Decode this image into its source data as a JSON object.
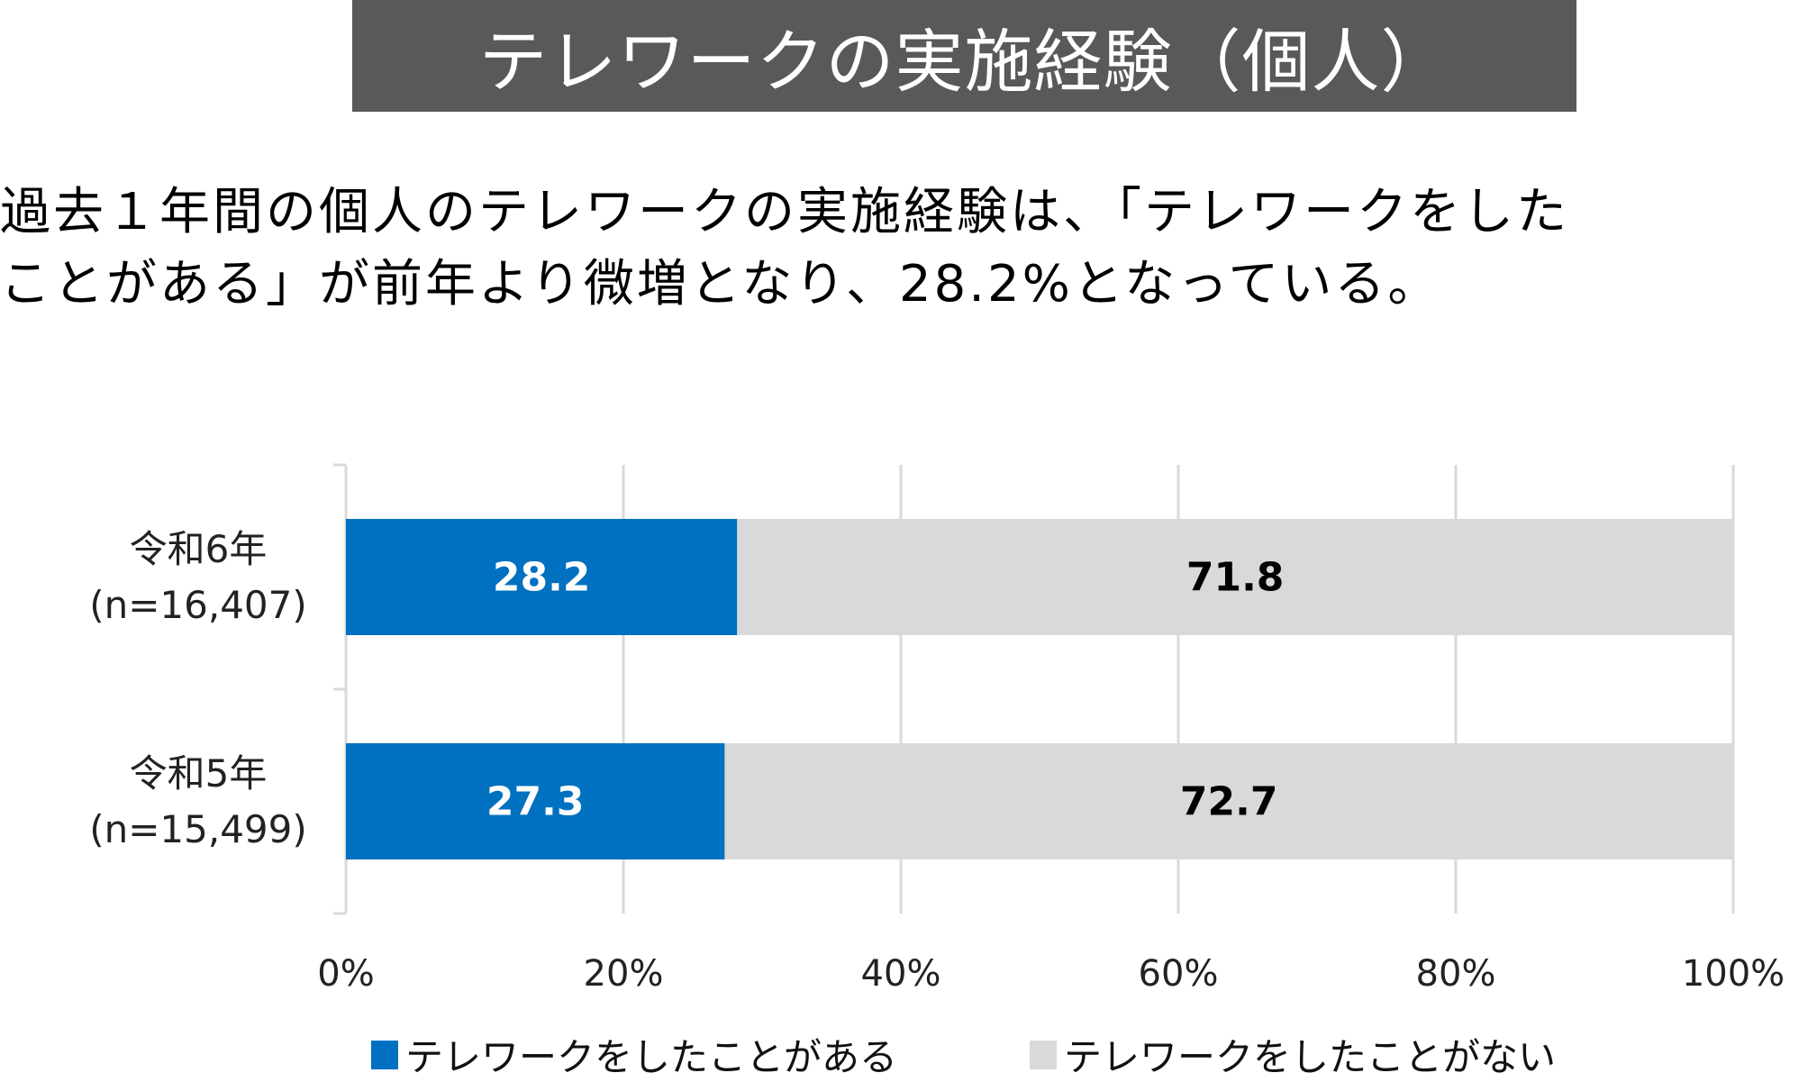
{
  "header": {
    "title": "テレワークの実施経験（個人）"
  },
  "description": {
    "line1": "過去１年間の個人のテレワークの実施経験は、「テレワークをした",
    "line2": "ことがある」が前年より微増となり、28.2%となっている。"
  },
  "chart_data": {
    "type": "bar",
    "orientation": "horizontal",
    "stacked": "percent",
    "categories": [
      {
        "name": "令和6年",
        "n": "(n=16,407)"
      },
      {
        "name": "令和5年",
        "n": "(n=15,499)"
      }
    ],
    "series": [
      {
        "name": "テレワークをしたことがある",
        "values": [
          28.2,
          27.3
        ],
        "color": "#0070c0",
        "label_color": "#ffffff"
      },
      {
        "name": "テレワークをしたことがない",
        "values": [
          71.8,
          72.7
        ],
        "color": "#d9d9d9",
        "label_color": "#000000"
      }
    ],
    "xlim": [
      0,
      100
    ],
    "xticks": [
      "0%",
      "20%",
      "40%",
      "60%",
      "80%",
      "100%"
    ],
    "grid": true,
    "legend": "bottom"
  }
}
